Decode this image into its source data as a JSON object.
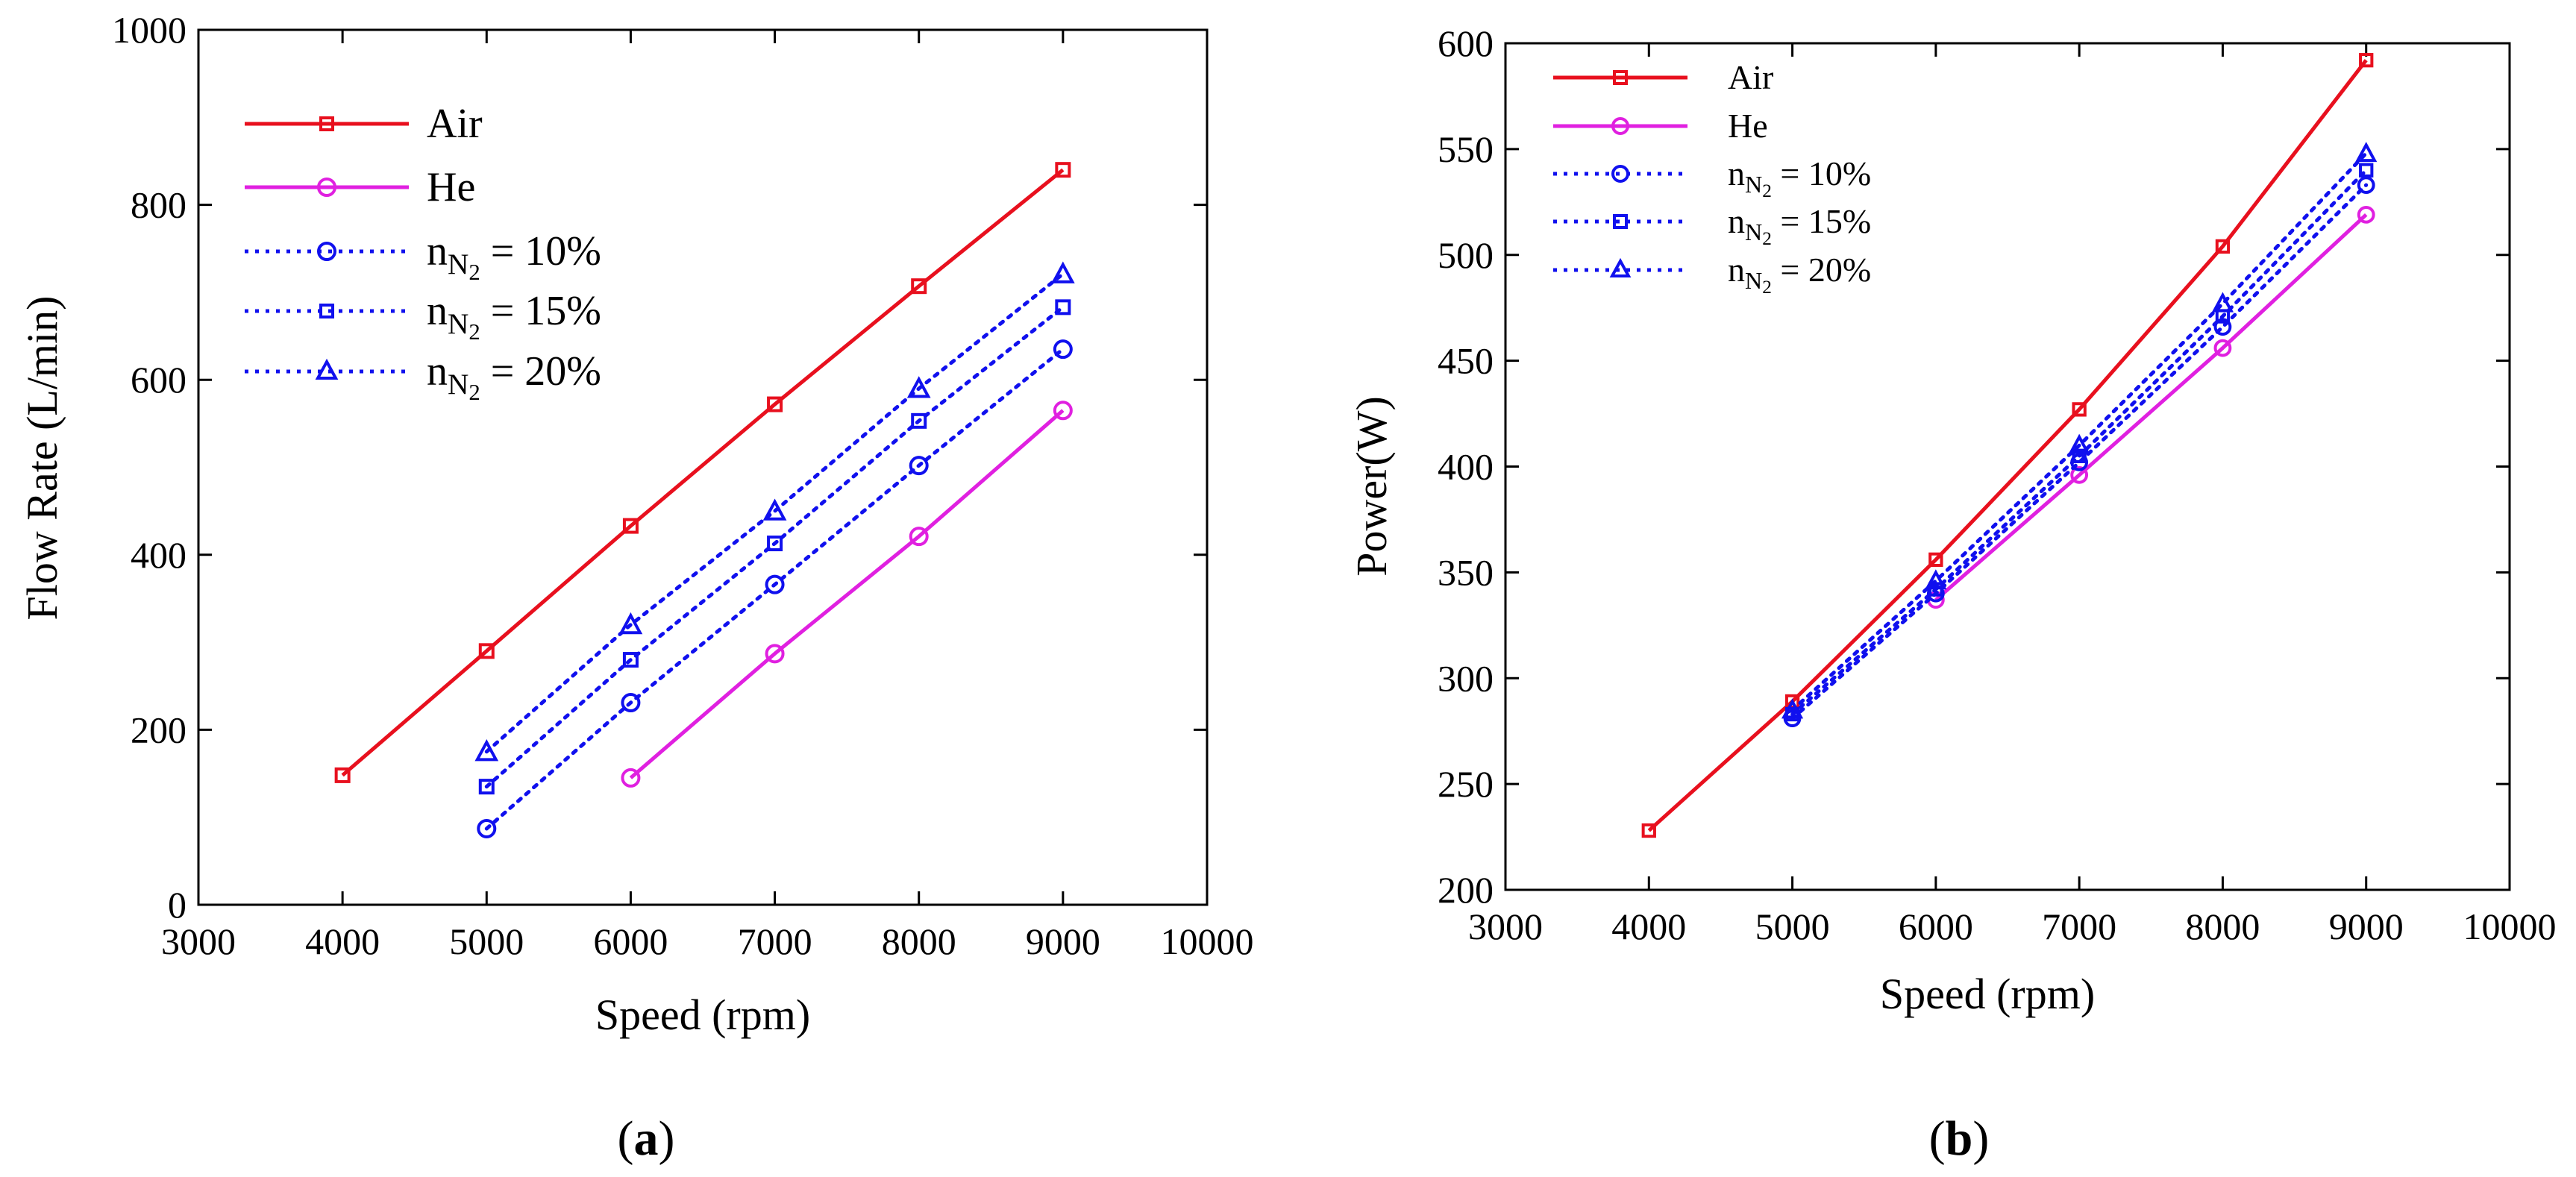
{
  "chart_data": [
    {
      "type": "line",
      "panel_label": "a",
      "xlabel": "Speed (rpm)",
      "ylabel": "Flow Rate (L/min)",
      "xlim": [
        3000,
        10000
      ],
      "ylim": [
        0,
        1000
      ],
      "xticks": [
        3000,
        4000,
        5000,
        6000,
        7000,
        8000,
        9000,
        10000
      ],
      "yticks": [
        0,
        200,
        400,
        600,
        800,
        1000
      ],
      "legend_position": "top-left",
      "series": [
        {
          "name": "Air",
          "color": "#e8101e",
          "line": "solid",
          "marker": "square",
          "x": [
            4000,
            5000,
            6000,
            7000,
            8000,
            9000
          ],
          "y": [
            148,
            290,
            433,
            572,
            707,
            840
          ]
        },
        {
          "name": "He",
          "color": "#e020e0",
          "line": "solid",
          "marker": "circle",
          "x": [
            6000,
            7000,
            8000,
            9000
          ],
          "y": [
            145,
            287,
            421,
            565
          ]
        },
        {
          "name": "nN2 = 10%",
          "legend_base": "n",
          "legend_sub": "N",
          "legend_subsub": "2",
          "legend_rest": " = 10%",
          "color": "#1010ee",
          "line": "dotted",
          "marker": "circle",
          "x": [
            5000,
            6000,
            7000,
            8000,
            9000
          ],
          "y": [
            87,
            231,
            366,
            502,
            635
          ]
        },
        {
          "name": "nN2 = 15%",
          "legend_base": "n",
          "legend_sub": "N",
          "legend_subsub": "2",
          "legend_rest": " = 15%",
          "color": "#1010ee",
          "line": "dotted",
          "marker": "square",
          "x": [
            5000,
            6000,
            7000,
            8000,
            9000
          ],
          "y": [
            135,
            280,
            413,
            553,
            683
          ]
        },
        {
          "name": "nN2 = 20%",
          "legend_base": "n",
          "legend_sub": "N",
          "legend_subsub": "2",
          "legend_rest": " = 20%",
          "color": "#1010ee",
          "line": "dotted",
          "marker": "triangle",
          "x": [
            5000,
            6000,
            7000,
            8000,
            9000
          ],
          "y": [
            175,
            320,
            450,
            590,
            721
          ]
        }
      ]
    },
    {
      "type": "line",
      "panel_label": "b",
      "xlabel": "Speed (rpm)",
      "ylabel": "Power(W)",
      "xlim": [
        3000,
        10000
      ],
      "ylim": [
        200,
        600
      ],
      "xticks": [
        3000,
        4000,
        5000,
        6000,
        7000,
        8000,
        9000,
        10000
      ],
      "yticks": [
        200,
        250,
        300,
        350,
        400,
        450,
        500,
        550,
        600
      ],
      "legend_position": "top-left",
      "series": [
        {
          "name": "Air",
          "color": "#e8101e",
          "line": "solid",
          "marker": "square",
          "x": [
            4000,
            5000,
            6000,
            7000,
            8000,
            9000
          ],
          "y": [
            228,
            289,
            356,
            427,
            504,
            592
          ]
        },
        {
          "name": "He",
          "color": "#e020e0",
          "line": "solid",
          "marker": "circle",
          "x": [
            6000,
            7000,
            8000,
            9000
          ],
          "y": [
            337,
            396,
            456,
            519
          ]
        },
        {
          "name": "nN2 = 10%",
          "legend_base": "n",
          "legend_sub": "N",
          "legend_subsub": "2",
          "legend_rest": " = 10%",
          "color": "#1010ee",
          "line": "dotted",
          "marker": "circle",
          "x": [
            5000,
            6000,
            7000,
            8000,
            9000
          ],
          "y": [
            281,
            340,
            402,
            466,
            533
          ]
        },
        {
          "name": "nN2 = 15%",
          "legend_base": "n",
          "legend_sub": "N",
          "legend_subsub": "2",
          "legend_rest": " = 15%",
          "color": "#1010ee",
          "line": "dotted",
          "marker": "square",
          "x": [
            5000,
            6000,
            7000,
            8000,
            9000
          ],
          "y": [
            283,
            342,
            405,
            471,
            540
          ]
        },
        {
          "name": "nN2 = 20%",
          "legend_base": "n",
          "legend_sub": "N",
          "legend_subsub": "2",
          "legend_rest": " = 20%",
          "color": "#1010ee",
          "line": "dotted",
          "marker": "triangle",
          "x": [
            5000,
            6000,
            7000,
            8000,
            9000
          ],
          "y": [
            285,
            346,
            410,
            477,
            548
          ]
        }
      ]
    }
  ]
}
